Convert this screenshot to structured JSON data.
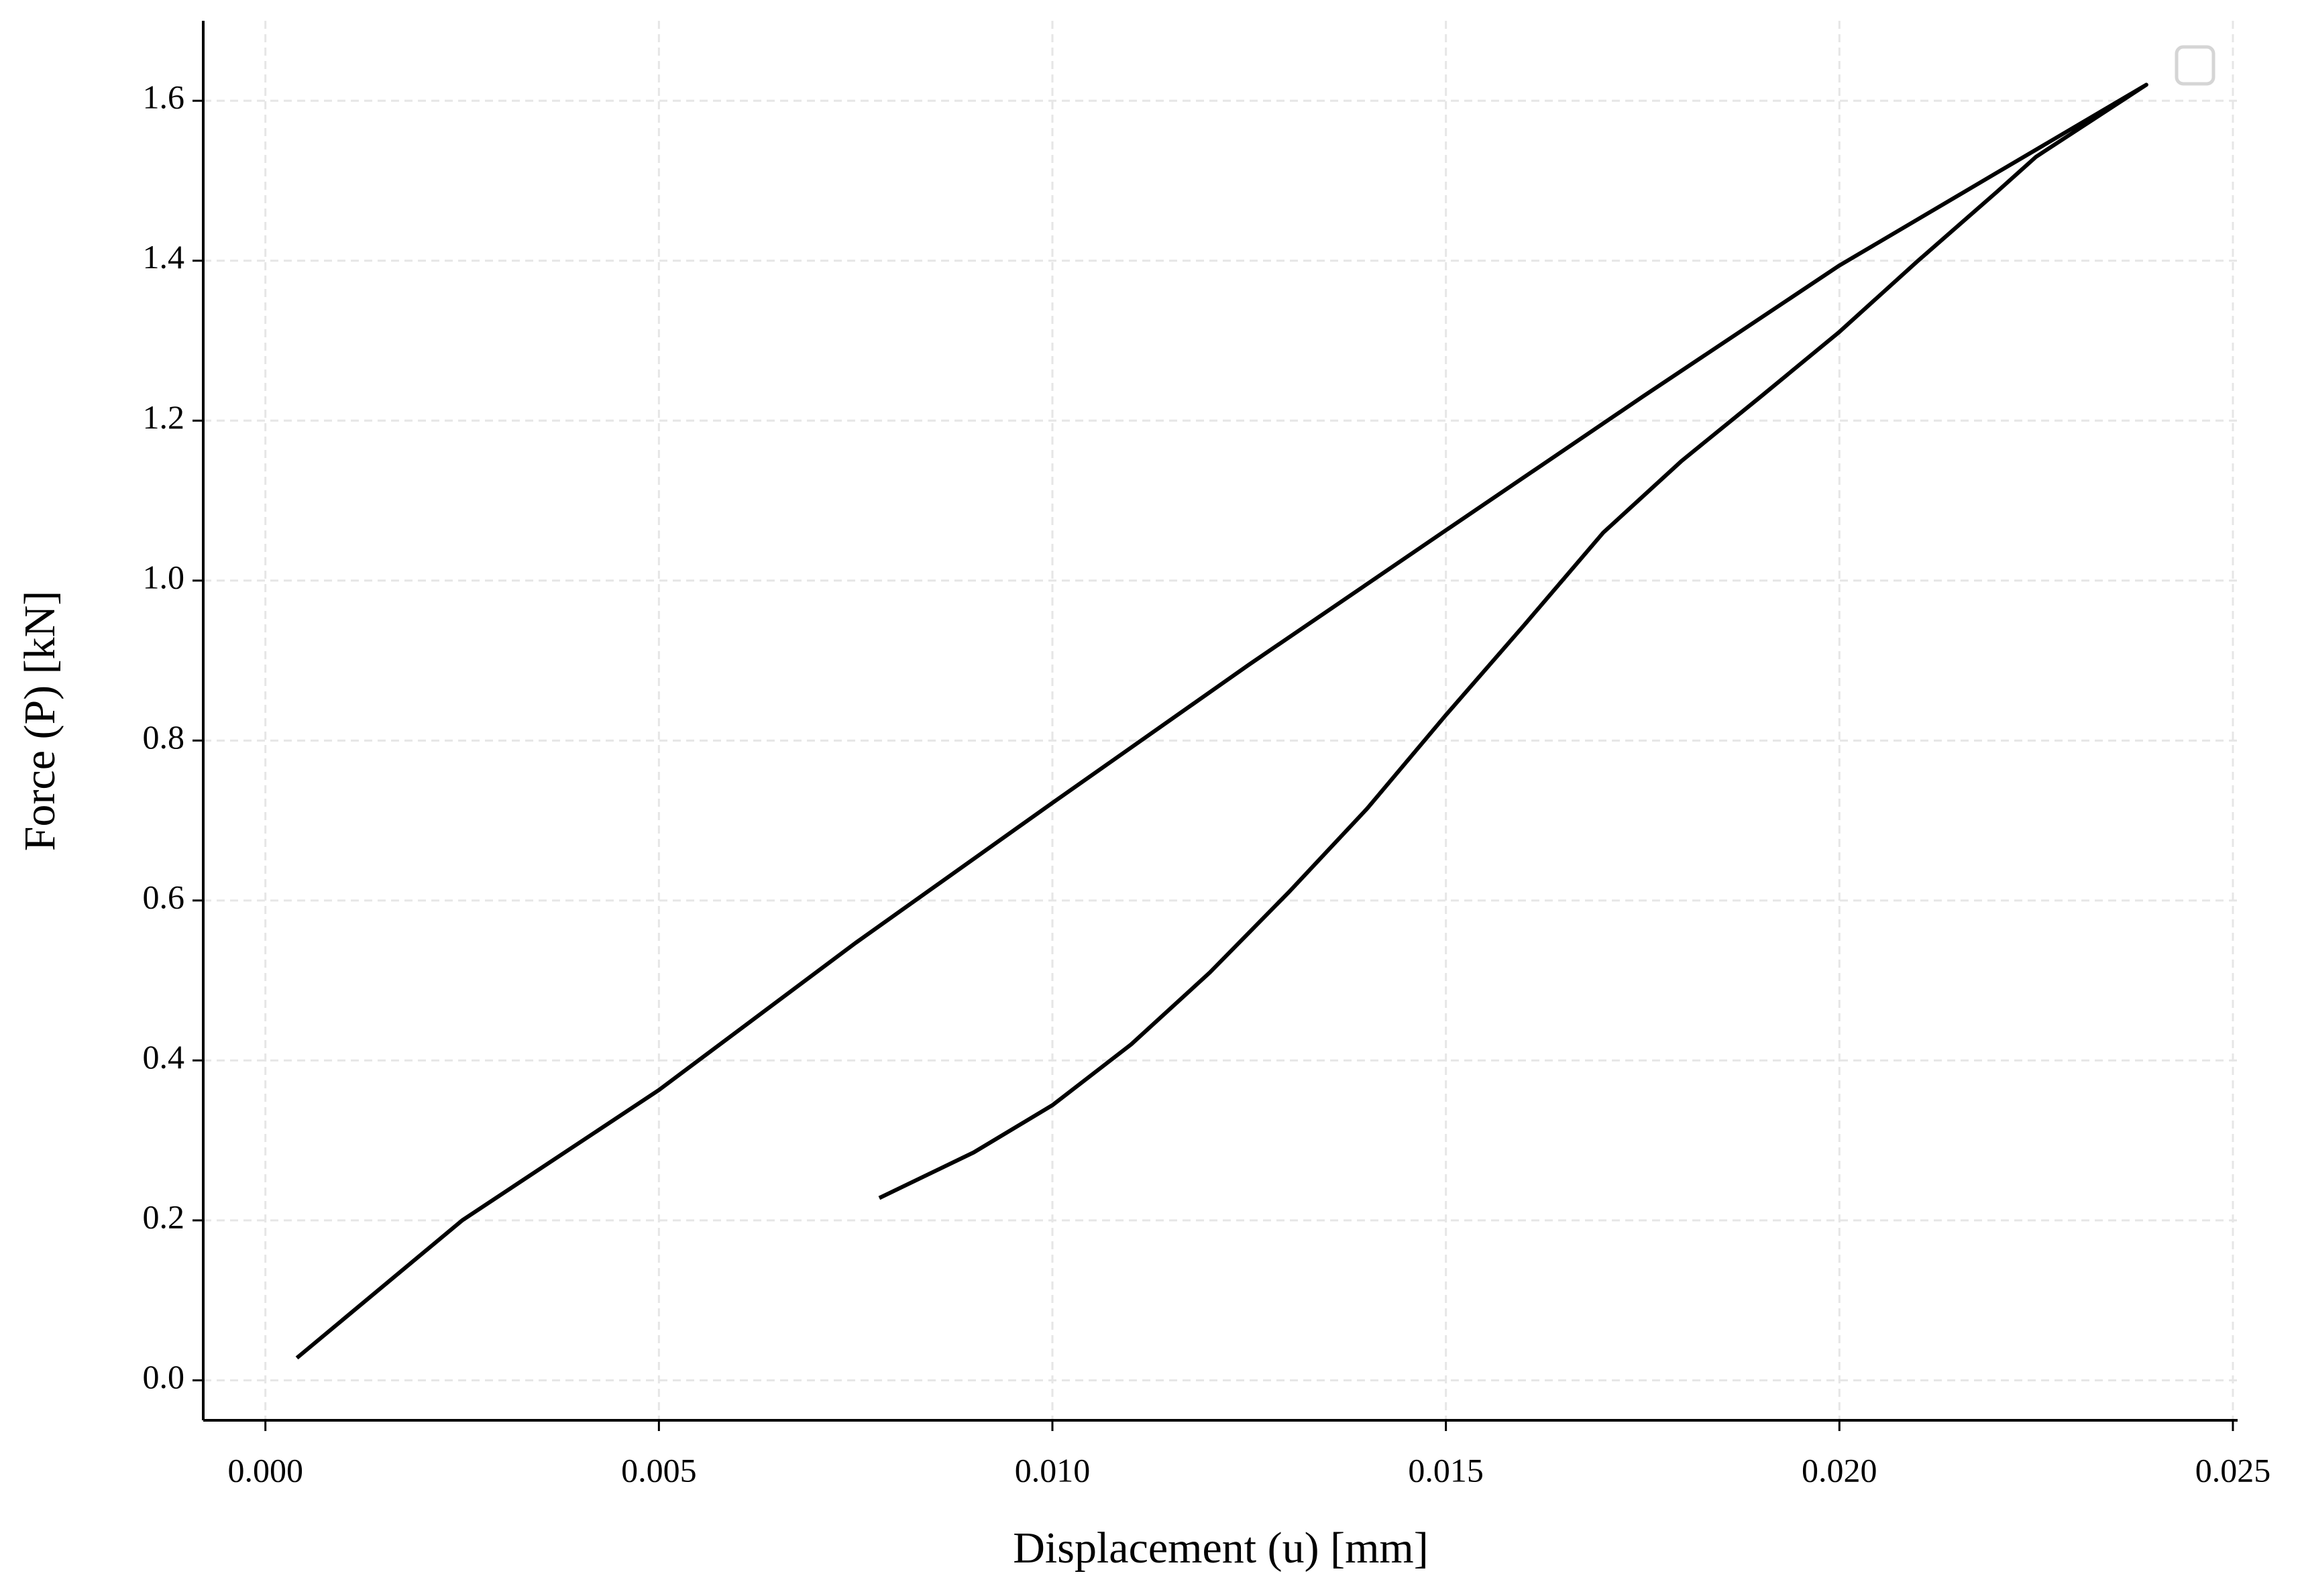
{
  "chart_data": {
    "type": "line",
    "xlabel": "Displacement (u) [mm]",
    "ylabel": "Force (P) [kN]",
    "xlim": [
      -0.00079,
      0.02506
    ],
    "ylim": [
      -0.05,
      1.7
    ],
    "xticks": [
      {
        "value": 0,
        "label": "0.000"
      },
      0.005,
      {
        "value": 0.01,
        "label": "0.010"
      },
      0.015,
      {
        "value": 0.02,
        "label": "0.020"
      },
      0.025
    ],
    "yticks": [
      {
        "value": 0,
        "label": "0.0"
      },
      0.2,
      0.4,
      0.6,
      0.8,
      {
        "value": 1,
        "label": "1.0"
      },
      1.2,
      1.4,
      1.6
    ],
    "grid": true,
    "series": [
      {
        "color": "#000000",
        "x": [
          0.0004,
          0.0025,
          0.005,
          0.0075,
          0.01,
          0.0125,
          0.015,
          0.0175,
          0.02,
          0.022,
          0.0239,
          0.0225,
          0.022,
          0.021,
          0.02,
          0.019,
          0.018,
          0.017,
          0.016,
          0.015,
          0.014,
          0.013,
          0.012,
          0.011,
          0.01,
          0.009,
          0.0078
        ],
        "values": [
          0.028,
          0.2,
          0.363,
          0.547,
          0.722,
          0.895,
          1.063,
          1.23,
          1.394,
          1.51,
          1.62,
          1.53,
          1.486,
          1.4,
          1.311,
          1.23,
          1.15,
          1.06,
          0.945,
          0.832,
          0.715,
          0.61,
          0.51,
          0.42,
          0.344,
          0.285,
          0.228
        ]
      }
    ]
  }
}
